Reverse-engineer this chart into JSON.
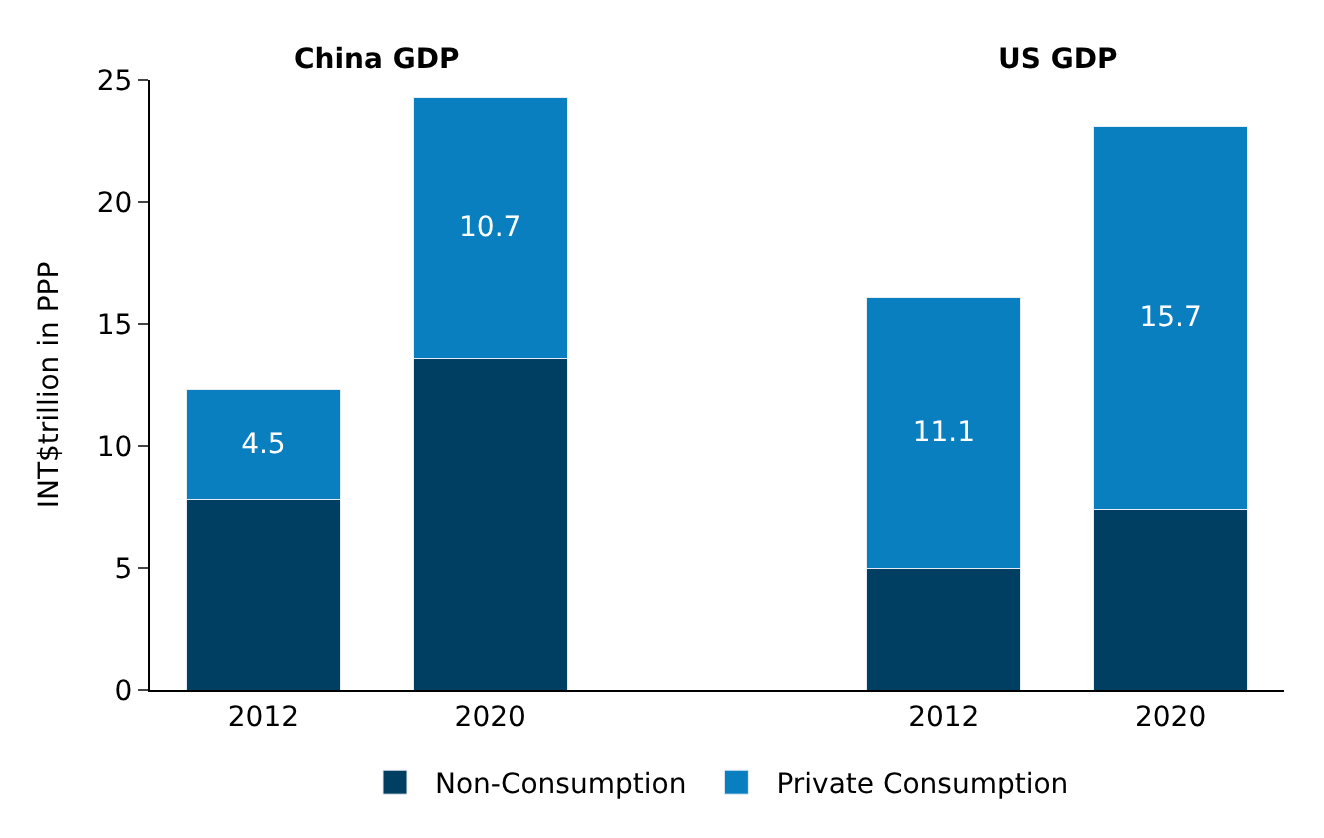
{
  "chart_data": {
    "type": "bar",
    "stacked": true,
    "ylabel": "INT$trillion in PPP",
    "categories": [
      "2012",
      "2020",
      null,
      "2012",
      "2020"
    ],
    "series": [
      {
        "name": "Non-Consumption",
        "color": "#003f62",
        "values": [
          7.8,
          13.6,
          null,
          5.0,
          7.4
        ]
      },
      {
        "name": "Private Consumption",
        "color": "#0a7fc0",
        "values": [
          4.5,
          10.7,
          null,
          11.1,
          15.7
        ],
        "value_labels": [
          "4.5",
          "10.7",
          null,
          "11.1",
          "15.7"
        ]
      }
    ],
    "annotations": [
      "China GDP",
      "US GDP"
    ],
    "ylim": [
      0,
      25
    ],
    "yticks": [
      0,
      5,
      10,
      15,
      20,
      25
    ],
    "legend": "bottom"
  }
}
